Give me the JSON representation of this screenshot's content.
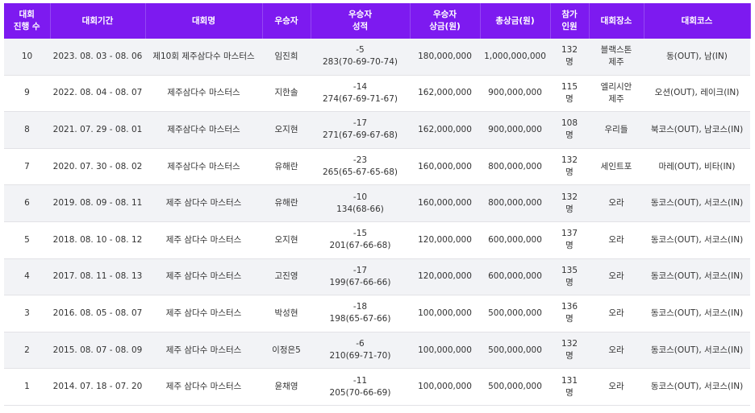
{
  "table": {
    "headers": [
      "대회\n진행 수",
      "대회기간",
      "대회명",
      "우승자",
      "우승자\n성적",
      "우승자\n상금(원)",
      "총상금(원)",
      "참가\n인원",
      "대회장소",
      "대회코스"
    ],
    "rows": [
      [
        "10",
        "2023. 08. 03 - 08. 06",
        "제10회 제주삼다수 마스터스",
        "임진희",
        "-5\n283(70-69-70-74)",
        "180,000,000",
        "1,000,000,000",
        "132\n명",
        "블랙스톤\n제주",
        "동(OUT), 남(IN)"
      ],
      [
        "9",
        "2022. 08. 04 - 08. 07",
        "제주삼다수 마스터스",
        "지한솔",
        "-14\n274(67-69-71-67)",
        "162,000,000",
        "900,000,000",
        "115\n명",
        "엘리시안\n제주",
        "오션(OUT), 레이크(IN)"
      ],
      [
        "8",
        "2021. 07. 29 - 08. 01",
        "제주삼다수 마스터스",
        "오지현",
        "-17\n271(67-69-67-68)",
        "162,000,000",
        "900,000,000",
        "108\n명",
        "우리들",
        "북코스(OUT), 남코스(IN)"
      ],
      [
        "7",
        "2020. 07. 30 - 08. 02",
        "제주삼다수 마스터스",
        "유해란",
        "-23\n265(65-67-65-68)",
        "160,000,000",
        "800,000,000",
        "132\n명",
        "세인트포",
        "마레(OUT), 비타(IN)"
      ],
      [
        "6",
        "2019. 08. 09 - 08. 11",
        "제주 삼다수 마스터스",
        "유해란",
        "-10\n134(68-66)",
        "160,000,000",
        "800,000,000",
        "132\n명",
        "오라",
        "동코스(OUT), 서코스(IN)"
      ],
      [
        "5",
        "2018. 08. 10 - 08. 12",
        "제주 삼다수 마스터스",
        "오지현",
        "-15\n201(67-66-68)",
        "120,000,000",
        "600,000,000",
        "137\n명",
        "오라",
        "동코스(OUT), 서코스(IN)"
      ],
      [
        "4",
        "2017. 08. 11 - 08. 13",
        "제주 삼다수 마스터스",
        "고진영",
        "-17\n199(67-66-66)",
        "120,000,000",
        "600,000,000",
        "135\n명",
        "오라",
        "동코스(OUT), 서코스(IN)"
      ],
      [
        "3",
        "2016. 08. 05 - 08. 07",
        "제주 삼다수 마스터스",
        "박성현",
        "-18\n198(65-67-66)",
        "100,000,000",
        "500,000,000",
        "136\n명",
        "오라",
        "동코스(OUT), 서코스(IN)"
      ],
      [
        "2",
        "2015. 08. 07 - 08. 09",
        "제주 삼다수 마스터스",
        "이정은5",
        "-6\n210(69-71-70)",
        "100,000,000",
        "500,000,000",
        "132\n명",
        "오라",
        "동코스(OUT), 서코스(IN)"
      ],
      [
        "1",
        "2014. 07. 18 - 07. 20",
        "제주 삼다수 마스터스",
        "윤채영",
        "-11\n205(70-66-69)",
        "100,000,000",
        "500,000,000",
        "131\n명",
        "오라",
        "동코스(OUT), 서코스(IN)"
      ]
    ]
  }
}
